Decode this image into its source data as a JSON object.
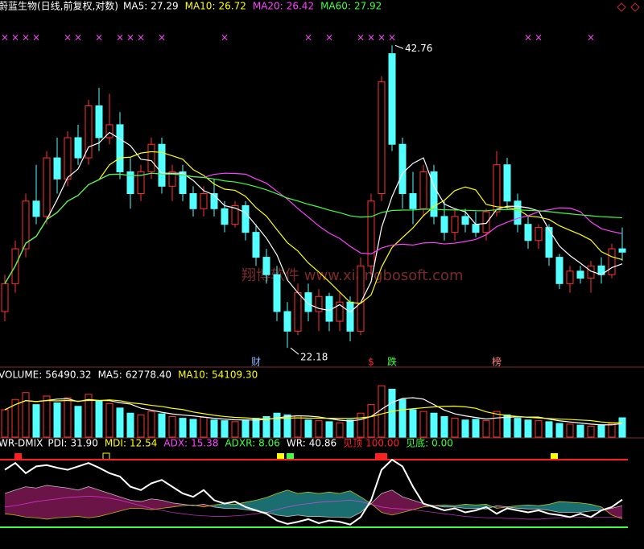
{
  "watermark": "翔博软件  www.xiangbosoft.com",
  "chart_data": [
    {
      "type": "candlestick",
      "title": "蔚蓝生物(日线,前复权,对数)",
      "header": [
        {
          "name": "MA5:",
          "value": 27.29,
          "color": "#ffffff"
        },
        {
          "name": "MA10:",
          "value": 26.72,
          "color": "#ffff00"
        },
        {
          "name": "MA20:",
          "value": 26.42,
          "color": "#ff40ff"
        },
        {
          "name": "MA60:",
          "value": 27.92,
          "color": "#40ff40"
        }
      ],
      "log_scale": true,
      "ylim": [
        21.5,
        44
      ],
      "colors": {
        "up": "#ff3232",
        "down": "#54ffff"
      },
      "open": [
        24,
        25.5,
        27.5,
        30.5,
        29.5,
        33.5,
        32,
        35,
        33.5,
        37.5,
        35,
        36,
        32.5,
        31,
        32.5,
        34.5,
        31.5,
        32.5,
        31,
        30,
        31,
        30,
        29,
        30.2,
        28.5,
        27,
        26,
        24,
        23,
        25,
        24,
        24.8,
        23.5,
        24.5,
        23,
        26.5,
        31,
        42,
        34.5,
        31,
        30,
        32.5,
        29.5,
        28.5,
        29.5,
        29,
        28.5,
        29.8,
        33,
        30.5,
        29,
        28,
        28.8,
        27,
        25.5,
        26.2,
        25.8,
        26.5,
        26,
        27.5
      ],
      "high": [
        26,
        28,
        31,
        33,
        34,
        35,
        35.5,
        36,
        38,
        39,
        38.5,
        37,
        33.5,
        33,
        35,
        35,
        33,
        33,
        31.5,
        31.5,
        32,
        30.5,
        30.5,
        30.5,
        29,
        27.5,
        26.5,
        24.5,
        25.5,
        25.5,
        25.2,
        25,
        25,
        24.8,
        27,
        31,
        40,
        42.76,
        35,
        32.5,
        33,
        33,
        30.5,
        30,
        30,
        29.8,
        30,
        34,
        33.5,
        31,
        29.5,
        29,
        29,
        27.2,
        26.5,
        26.5,
        26.8,
        27,
        27.8,
        28.8
      ],
      "low": [
        23.5,
        25,
        27,
        29,
        29,
        31,
        31.5,
        33,
        33,
        34,
        34.5,
        32,
        30,
        30.5,
        32,
        31,
        30.5,
        30.5,
        29.5,
        29.5,
        29.5,
        28.5,
        28.8,
        28,
        26.5,
        25.5,
        23.5,
        22.18,
        22.8,
        23.5,
        23,
        23,
        23,
        22.5,
        22.8,
        26,
        30.5,
        34,
        30,
        29,
        29.5,
        29,
        28,
        28,
        28.5,
        28.2,
        28,
        29.5,
        30,
        28.5,
        27.5,
        27.5,
        26.5,
        25.2,
        25,
        25.5,
        25,
        25.5,
        25.8,
        26.8
      ],
      "close": [
        25.5,
        27.5,
        30.5,
        29.5,
        33.5,
        32,
        35,
        33.5,
        37.5,
        35,
        36,
        32.5,
        31,
        32.5,
        34.5,
        31.5,
        32.5,
        31,
        30,
        31,
        30,
        29,
        30.2,
        28.5,
        27,
        26,
        24,
        23,
        25,
        24,
        24.8,
        23.5,
        24.5,
        23,
        26.5,
        30.5,
        39.5,
        34.5,
        31,
        30,
        32.5,
        29.5,
        28.5,
        29.5,
        29,
        28.5,
        29.8,
        33,
        30.5,
        29,
        28,
        28.8,
        27,
        25.5,
        26.2,
        25.8,
        26.5,
        26,
        27.5,
        27.3
      ],
      "signal_symbol": "×",
      "signal_indices": [
        0,
        1,
        2,
        3,
        6,
        7,
        9,
        11,
        12,
        13,
        15,
        21,
        29,
        31,
        34,
        35,
        36,
        37,
        50,
        51,
        56
      ],
      "annotations": [
        {
          "text": "财",
          "index": 24,
          "color": "#8ab4ff"
        },
        {
          "text": "$",
          "index": 35,
          "color": "#ff3232"
        },
        {
          "text": "跌",
          "index": 37,
          "color": "#40ff40"
        },
        {
          "text": "榜",
          "index": 47,
          "color": "#ff8080"
        }
      ]
    },
    {
      "type": "bar",
      "header": [
        {
          "name": "VOLUME:",
          "value": 56490.32,
          "color": "#ffffff"
        },
        {
          "name": "MA5:",
          "value": 62778.4,
          "label": "62778.40",
          "color": "#ffffff"
        },
        {
          "name": "MA10:",
          "value": 54109.3,
          "label": "54109.30",
          "color": "#ffff00"
        }
      ],
      "ylim": [
        0,
        160000
      ],
      "values": [
        80000,
        110000,
        130000,
        95000,
        120000,
        100000,
        115000,
        90000,
        125000,
        105000,
        98000,
        85000,
        70000,
        65000,
        75000,
        68000,
        60000,
        55000,
        52000,
        58000,
        50000,
        48000,
        45000,
        50000,
        55000,
        60000,
        70000,
        65000,
        62000,
        50000,
        48000,
        45000,
        42000,
        50000,
        70000,
        95000,
        150000,
        140000,
        110000,
        80000,
        75000,
        70000,
        60000,
        55000,
        50000,
        52000,
        48000,
        75000,
        65000,
        55000,
        50000,
        48000,
        45000,
        40000,
        38000,
        35000,
        32000,
        34000,
        40000,
        56490.32
      ]
    },
    {
      "type": "line",
      "title": "WR-DMIX",
      "header": [
        {
          "name": "PDI:",
          "value": 31.9,
          "label": "31.90",
          "color": "#ffffff"
        },
        {
          "name": "MDI:",
          "value": 12.54,
          "color": "#ffff00"
        },
        {
          "name": "ADX:",
          "value": 15.38,
          "color": "#ff40ff"
        },
        {
          "name": "ADXR:",
          "value": 8.06,
          "color": "#40ff40"
        },
        {
          "name": "WR:",
          "value": 40.86,
          "color": "#ffffff"
        },
        {
          "name": "见顶",
          "value": 100,
          "label": "100.00",
          "color": "#ff2020"
        },
        {
          "name": "见底:",
          "value": 0,
          "label": "0.00",
          "color": "#40ff40"
        }
      ],
      "ylim": [
        0,
        100
      ],
      "wr": [
        85,
        95,
        80,
        90,
        92,
        88,
        85,
        90,
        95,
        88,
        80,
        75,
        60,
        55,
        65,
        70,
        60,
        50,
        45,
        55,
        40,
        35,
        38,
        30,
        25,
        20,
        10,
        5,
        8,
        12,
        6,
        10,
        8,
        4,
        15,
        40,
        85,
        100,
        90,
        60,
        35,
        30,
        25,
        28,
        22,
        25,
        30,
        20,
        28,
        25,
        22,
        25,
        20,
        18,
        15,
        20,
        15,
        25,
        30,
        40.86
      ],
      "pdi": [
        50,
        55,
        60,
        58,
        62,
        60,
        58,
        55,
        60,
        55,
        50,
        45,
        40,
        38,
        42,
        40,
        36,
        34,
        32,
        34,
        30,
        28,
        28,
        26,
        24,
        22,
        18,
        16,
        18,
        16,
        16,
        15,
        15,
        14,
        22,
        35,
        50,
        55,
        45,
        40,
        35,
        32,
        30,
        30,
        28,
        28,
        27,
        32,
        30,
        28,
        27,
        27,
        25,
        22,
        22,
        22,
        24,
        25,
        28,
        31.9
      ],
      "mdi": [
        20,
        18,
        15,
        14,
        12,
        14,
        15,
        16,
        14,
        16,
        20,
        24,
        28,
        28,
        26,
        28,
        30,
        32,
        33,
        30,
        33,
        35,
        34,
        37,
        40,
        44,
        50,
        55,
        50,
        52,
        50,
        52,
        50,
        54,
        45,
        35,
        22,
        18,
        22,
        26,
        30,
        32,
        33,
        32,
        34,
        33,
        34,
        28,
        30,
        32,
        33,
        32,
        34,
        38,
        37,
        36,
        34,
        30,
        18,
        12.54
      ],
      "adx": [
        30,
        32,
        35,
        38,
        40,
        42,
        44,
        45,
        46,
        45,
        43,
        40,
        36,
        32,
        28,
        25,
        22,
        20,
        18,
        17,
        16,
        16,
        17,
        18,
        20,
        22,
        26,
        30,
        33,
        35,
        37,
        38,
        39,
        40,
        38,
        34,
        30,
        28,
        27,
        26,
        24,
        22,
        20,
        18,
        16,
        15,
        14,
        14,
        13,
        13,
        12,
        12,
        13,
        14,
        15,
        15,
        15,
        15,
        15,
        15.38
      ]
    }
  ]
}
